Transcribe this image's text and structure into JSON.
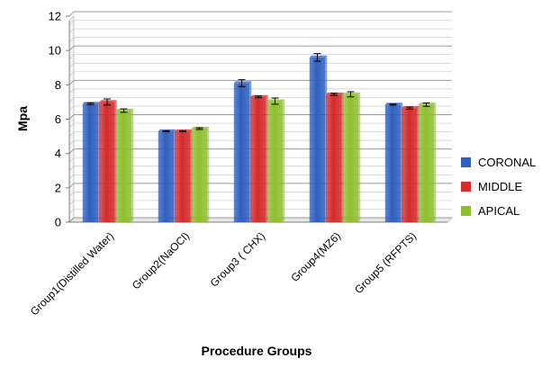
{
  "chart_data": {
    "type": "bar",
    "xlabel": "Procedure Groups",
    "ylabel": "Mpa",
    "ylim": [
      0,
      12
    ],
    "yticks": [
      0,
      2,
      4,
      6,
      8,
      10,
      12
    ],
    "grid": true,
    "legend_position": "right",
    "categories": [
      "Group1(Distilled Water)",
      "Group2(NaOCl)",
      "Group3 ( CHX)",
      "Group4(MZ6)",
      "Group5 (RFPTS)"
    ],
    "series": [
      {
        "name": "CORONAL",
        "color": "#2f5fbf",
        "values": [
          6.9,
          5.3,
          8.1,
          9.6,
          6.85
        ],
        "errors": [
          0.05,
          0.03,
          0.2,
          0.22,
          0.03
        ]
      },
      {
        "name": "MIDDLE",
        "color": "#d42b2b",
        "values": [
          7.0,
          5.3,
          7.3,
          7.45,
          6.65
        ],
        "errors": [
          0.18,
          0.03,
          0.05,
          0.06,
          0.06
        ]
      },
      {
        "name": "APICAL",
        "color": "#8fbf2f",
        "values": [
          6.5,
          5.45,
          7.05,
          7.45,
          6.85
        ],
        "errors": [
          0.1,
          0.05,
          0.18,
          0.15,
          0.1
        ]
      }
    ]
  }
}
